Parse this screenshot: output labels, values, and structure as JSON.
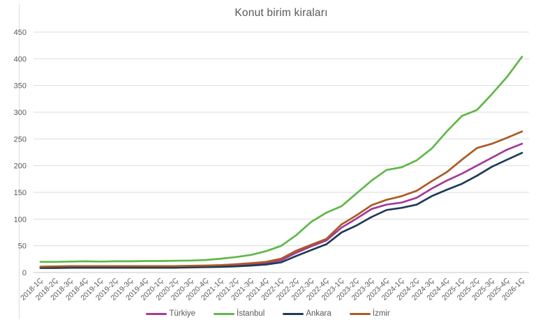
{
  "chart_data": {
    "type": "line",
    "title": "Konut birim kiraları",
    "categories": [
      "2018-1Ç",
      "2018-2Ç",
      "2018-3Ç",
      "2018-4Ç",
      "2019-1Ç",
      "2019-2Ç",
      "2019-3Ç",
      "2019-4Ç",
      "2020-1Ç",
      "2020-2Ç",
      "2020-3Ç",
      "2020-4Ç",
      "2021-1Ç",
      "2021-2Ç",
      "2021-3Ç",
      "2021-4Ç",
      "2022-1Ç",
      "2022-2Ç",
      "2022-3Ç",
      "2022-4Ç",
      "2023-1Ç",
      "2023-2Ç",
      "2023-3Ç",
      "2023-4Ç",
      "2024-1Ç",
      "2024-2Ç",
      "2024-3Ç",
      "2024-4Ç",
      "2025-1Ç",
      "2025-2Ç",
      "2025-3Ç",
      "2025-4Ç",
      "2026-1Ç"
    ],
    "series": [
      {
        "name": "Türkiye",
        "color": "#A53A99",
        "values": [
          10,
          10,
          10.5,
          11,
          11,
          11,
          11,
          11,
          11,
          11,
          11.5,
          12,
          12.5,
          13.5,
          15,
          17.5,
          23,
          37,
          49,
          60,
          84,
          101,
          119,
          127,
          131,
          140,
          157,
          172,
          185,
          200,
          215,
          230,
          241
        ]
      },
      {
        "name": "İstanbul",
        "color": "#5FB848",
        "values": [
          20,
          20,
          20.5,
          21,
          20.5,
          21,
          21,
          21.5,
          21.5,
          22,
          22.5,
          23.5,
          26,
          29,
          33,
          40,
          50,
          70,
          95,
          112,
          124,
          148,
          172,
          192,
          197,
          210,
          232,
          264,
          293,
          304,
          334,
          366,
          404
        ]
      },
      {
        "name": "Ankara",
        "color": "#1F3B57",
        "values": [
          8.5,
          8.5,
          9,
          9,
          9,
          9,
          9,
          9,
          9,
          9,
          9.5,
          10,
          10.5,
          11.5,
          13,
          15,
          19,
          31,
          42,
          53,
          75,
          88,
          104,
          117,
          121,
          127,
          143,
          155,
          166,
          181,
          198,
          211,
          224
        ]
      },
      {
        "name": "İzmir",
        "color": "#A95B25",
        "values": [
          11,
          11.5,
          12,
          12,
          12,
          12,
          12,
          12,
          12,
          12,
          12.5,
          13,
          14,
          15.5,
          17.5,
          20,
          26,
          41,
          52,
          63,
          90,
          107,
          126,
          136,
          143,
          153,
          171,
          188,
          211,
          233,
          241,
          252,
          264
        ]
      }
    ],
    "ylim": [
      0,
      450
    ],
    "yticks": [
      0,
      50,
      100,
      150,
      200,
      250,
      300,
      350,
      400,
      450
    ],
    "xlabel": "",
    "ylabel": "",
    "grid": true,
    "legend_position": "bottom",
    "colors": {
      "text": "#595959",
      "gridline": "#DBDBDB",
      "axis_line": "#C6C6C6",
      "chart_border": "#DCDCDC",
      "background": "#FFFFFF"
    }
  }
}
